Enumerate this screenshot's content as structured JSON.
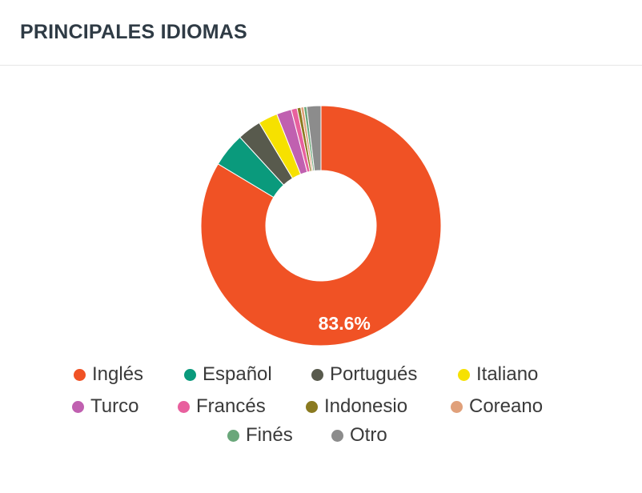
{
  "header": {
    "title": "PRINCIPALES IDIOMAS"
  },
  "chart_data": {
    "type": "pie",
    "donut": true,
    "categories": [
      "Inglés",
      "Español",
      "Portugués",
      "Italiano",
      "Turco",
      "Francés",
      "Indonesio",
      "Coreano",
      "Finés",
      "Otro"
    ],
    "values": [
      83.6,
      4.6,
      3.2,
      2.6,
      2.0,
      0.8,
      0.5,
      0.4,
      0.4,
      1.9
    ],
    "colors": [
      "#f05225",
      "#0a9a7c",
      "#585a4d",
      "#f6e100",
      "#c060b0",
      "#e8609e",
      "#8a7a20",
      "#e0a07a",
      "#6aa77a",
      "#8c8c8c"
    ],
    "data_labels": [
      {
        "index": 0,
        "text": "83.6%"
      }
    ],
    "legend_position": "bottom"
  }
}
